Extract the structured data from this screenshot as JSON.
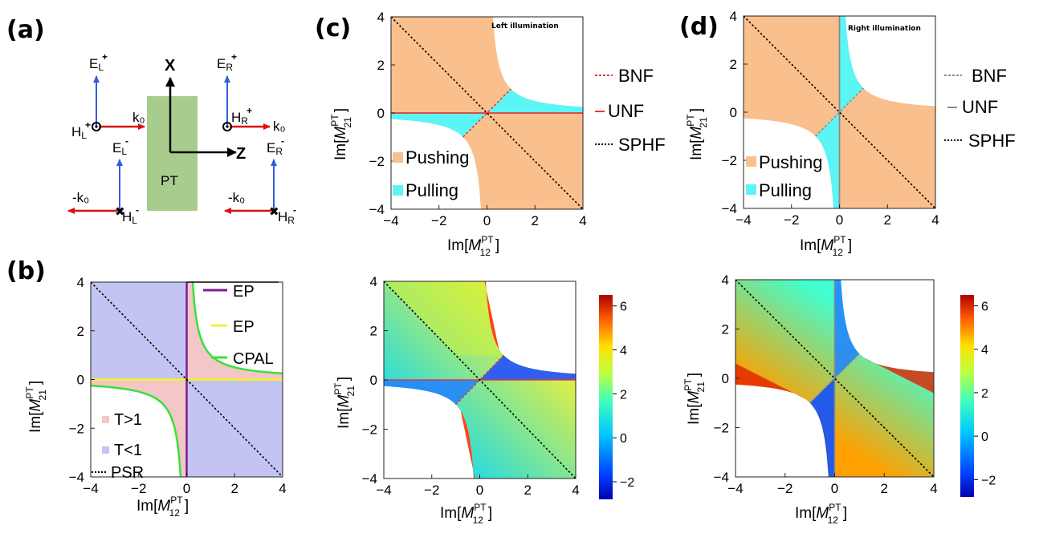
{
  "panels": {
    "a": {
      "label": "(a)",
      "slab_label": "PT",
      "axis_x": "X",
      "axis_z": "Z",
      "EL_plus": {
        "base": "E",
        "sub": "L",
        "sup": "+"
      },
      "HL_plus": {
        "base": "H",
        "sub": "L",
        "sup": "+"
      },
      "EL_minus": {
        "base": "E",
        "sub": "L",
        "sup": "-"
      },
      "HL_minus": {
        "base": "H",
        "sub": "L",
        "sup": "-"
      },
      "ER_plus": {
        "base": "E",
        "sub": "R",
        "sup": "+"
      },
      "HR_plus": {
        "base": "H",
        "sub": "R",
        "sup": "+"
      },
      "ER_minus": {
        "base": "E",
        "sub": "R",
        "sup": "-"
      },
      "HR_minus": {
        "base": "H",
        "sub": "R",
        "sup": "-"
      },
      "k_left_top": "k₀",
      "k_right_top": "k₀",
      "k_left_bottom": "-k₀",
      "k_right_bottom": "-k₀"
    },
    "b": {
      "label": "(b)",
      "legend_right": [
        "EP",
        "EP",
        "CPAL"
      ],
      "legend_inside": [
        "T>1",
        "T<1",
        "PSR"
      ]
    },
    "c": {
      "label": "(c)",
      "inset_title": "Left illumination",
      "legend_inside": [
        "Pushing",
        "Pulling"
      ],
      "legend_right": [
        "BNF",
        "UNF",
        "SPHF"
      ]
    },
    "d": {
      "label": "(d)",
      "inset_title": "Right illumination",
      "legend_inside": [
        "Pushing",
        "Pulling"
      ],
      "legend_right": [
        "BNF",
        "UNF",
        "SPHF"
      ]
    }
  },
  "axes": {
    "xlabel": {
      "base": "Im[",
      "italic": "M",
      "sub": "12",
      "sup": "PT",
      "close": "]"
    },
    "ylabel": {
      "base": "Im[",
      "italic": "M",
      "sub": "21",
      "sup": "PT",
      "close": "]"
    },
    "ticks": [
      "-4",
      "-2",
      "0",
      "2",
      "4"
    ],
    "xlim": [
      -4,
      4
    ],
    "ylim": [
      -4,
      4
    ]
  },
  "colorbar": {
    "ticks": [
      "6",
      "4",
      "2",
      "0",
      "-2"
    ],
    "range": [
      -2.8,
      6.5
    ]
  },
  "colors": {
    "pushing": "#f9c08e",
    "pulling": "#5cf5f5",
    "t_gt_1": "#f4c6c8",
    "t_lt_1": "#c4c4f2",
    "ep_vertical": "#7b1f8c",
    "ep_horizontal": "#f2ee3c",
    "cpal": "#38e038",
    "bnf": "#e03a3a",
    "unf": "#e03a3a",
    "unf_right": "#8a8a8a",
    "sphf": "#000000",
    "slab": "#a8cc8e",
    "e_field": "#2f5fd8",
    "k_vector": "#d81010"
  },
  "chart_data": [
    {
      "type": "heatmap",
      "panel": "b",
      "xlim": [
        -4,
        4
      ],
      "ylim": [
        -4,
        4
      ],
      "regions": [
        {
          "name": "T>1",
          "color": "#f4c6c8"
        },
        {
          "name": "T<1",
          "color": "#c4c4f2"
        }
      ],
      "curves": [
        "EP (x=0)",
        "EP (y=0)",
        "CPAL (xy=1)",
        "PSR (y=-x)"
      ]
    },
    {
      "type": "heatmap",
      "panel": "c-top",
      "xlim": [
        -4,
        4
      ],
      "ylim": [
        -4,
        4
      ],
      "regions": [
        {
          "name": "Pushing",
          "color": "#f9c08e"
        },
        {
          "name": "Pulling",
          "color": "#5cf5f5"
        }
      ],
      "curves": [
        "BNF (y=x, |x|<1)",
        "UNF (y=0)",
        "SPHF (y=-x)"
      ]
    },
    {
      "type": "heatmap",
      "panel": "d-top",
      "xlim": [
        -4,
        4
      ],
      "ylim": [
        -4,
        4
      ],
      "regions": [
        {
          "name": "Pushing",
          "color": "#f9c08e"
        },
        {
          "name": "Pulling",
          "color": "#5cf5f5"
        }
      ],
      "curves": [
        "BNF (y=x, |x|<1)",
        "UNF (x=0)",
        "SPHF (y=-x)"
      ]
    },
    {
      "type": "heatmap",
      "panel": "c-bottom",
      "xlim": [
        -4,
        4
      ],
      "ylim": [
        -4,
        4
      ],
      "colorbar_range": [
        -2.8,
        6.5
      ]
    },
    {
      "type": "heatmap",
      "panel": "d-bottom",
      "xlim": [
        -4,
        4
      ],
      "ylim": [
        -4,
        4
      ],
      "colorbar_range": [
        -2.8,
        6.5
      ]
    }
  ]
}
